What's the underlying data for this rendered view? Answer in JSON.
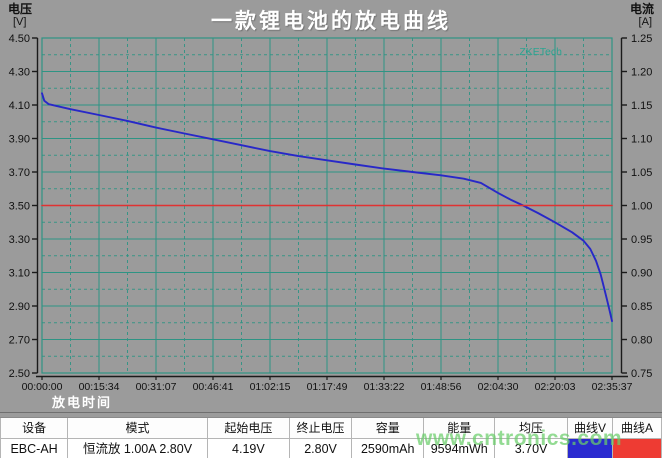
{
  "header": {
    "title": "一款锂电池的放电曲线",
    "left_axis_name": "电压",
    "left_axis_unit": "[V]",
    "right_axis_name": "电流",
    "right_axis_unit": "[A]"
  },
  "watermarks": {
    "vendor": "ZKETech",
    "site": "www.cntronics.com"
  },
  "colors": {
    "background": "#9b9b9b",
    "grid": "#2e9484",
    "axis": "#1a1a1a",
    "voltage_curve": "#2828c8",
    "current_line": "#e03232",
    "title_text": "#ffffff",
    "vendor_watermark": "#2ca491",
    "site_watermark": "#69cd69",
    "swatch_v": "#2a2ad0",
    "swatch_a": "#ee3b33"
  },
  "chart_data": {
    "type": "line",
    "title": "一款锂电池的放电曲线",
    "xlabel": "放电时间",
    "x_ticks": [
      "00:00:00",
      "00:15:34",
      "00:31:07",
      "00:46:41",
      "01:02:15",
      "01:17:49",
      "01:33:22",
      "01:48:56",
      "02:04:30",
      "02:20:03",
      "02:35:37"
    ],
    "y_left": {
      "label": "电压 [V]",
      "min": 2.5,
      "max": 4.5,
      "step": 0.2
    },
    "y_right": {
      "label": "电流 [A]",
      "min": 0.75,
      "max": 1.25,
      "step": 0.05
    },
    "grid": {
      "major": "solid",
      "minor": "dashed"
    },
    "legend_position": "none",
    "series": [
      {
        "name": "曲线V",
        "axis": "left",
        "color": "#2828c8",
        "points": [
          [
            0,
            4.17
          ],
          [
            0.004,
            4.125
          ],
          [
            0.012,
            4.105
          ],
          [
            0.05,
            4.075
          ],
          [
            0.1,
            4.04
          ],
          [
            0.15,
            4.005
          ],
          [
            0.2,
            3.965
          ],
          [
            0.25,
            3.93
          ],
          [
            0.3,
            3.895
          ],
          [
            0.35,
            3.86
          ],
          [
            0.4,
            3.825
          ],
          [
            0.45,
            3.795
          ],
          [
            0.5,
            3.77
          ],
          [
            0.55,
            3.745
          ],
          [
            0.6,
            3.72
          ],
          [
            0.65,
            3.7
          ],
          [
            0.7,
            3.68
          ],
          [
            0.74,
            3.66
          ],
          [
            0.77,
            3.635
          ],
          [
            0.8,
            3.575
          ],
          [
            0.822,
            3.535
          ],
          [
            0.844,
            3.5
          ],
          [
            0.87,
            3.455
          ],
          [
            0.9,
            3.4
          ],
          [
            0.93,
            3.34
          ],
          [
            0.95,
            3.29
          ],
          [
            0.962,
            3.24
          ],
          [
            0.972,
            3.17
          ],
          [
            0.98,
            3.09
          ],
          [
            0.986,
            3.01
          ],
          [
            0.991,
            2.94
          ],
          [
            0.996,
            2.87
          ],
          [
            1.0,
            2.81
          ]
        ]
      },
      {
        "name": "曲线A",
        "axis": "right",
        "color": "#e03232",
        "points": [
          [
            0,
            1.0
          ],
          [
            1,
            1.0
          ]
        ]
      }
    ]
  },
  "table": {
    "columns": [
      {
        "header": "设备",
        "value": "EBC-AH"
      },
      {
        "header": "模式",
        "value": "恒流放  1.00A  2.80V"
      },
      {
        "header": "起始电压",
        "value": "4.19V"
      },
      {
        "header": "终止电压",
        "value": "2.80V"
      },
      {
        "header": "容量",
        "value": "2590mAh"
      },
      {
        "header": "能量",
        "value": "9594mWh"
      },
      {
        "header": "均压",
        "value": "3.70V"
      },
      {
        "header": "曲线V",
        "swatch": "#2a2ad0"
      },
      {
        "header": "曲线A",
        "swatch": "#ee3b33"
      }
    ]
  }
}
